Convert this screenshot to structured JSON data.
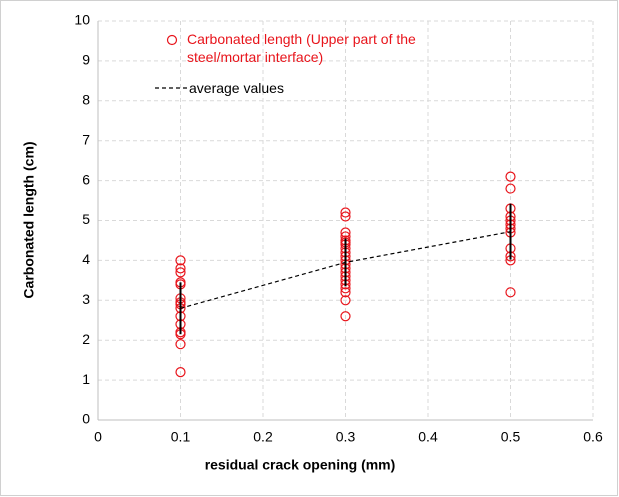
{
  "chart_data": {
    "type": "scatter",
    "xlabel": "residual crack opening (mm)",
    "ylabel": "Carbonated length (cm)",
    "xlim": [
      0,
      0.6
    ],
    "xticks": [
      0,
      0.1,
      0.2,
      0.3,
      0.4,
      0.5,
      0.6
    ],
    "ylim": [
      0,
      10
    ],
    "yticks": [
      0,
      1,
      2,
      3,
      4,
      5,
      6,
      7,
      8,
      9,
      10
    ],
    "grid": true,
    "series": [
      {
        "name": "Carbonated length (Upper part of the steel/mortar interface)",
        "color": "#e8141b",
        "marker": "circle",
        "x": [
          0.1,
          0.1,
          0.1,
          0.1,
          0.1,
          0.1,
          0.1,
          0.1,
          0.1,
          0.1,
          0.1,
          0.1,
          0.1,
          0.1,
          0.1,
          0.3,
          0.3,
          0.3,
          0.3,
          0.3,
          0.3,
          0.3,
          0.3,
          0.3,
          0.3,
          0.3,
          0.3,
          0.3,
          0.3,
          0.3,
          0.3,
          0.3,
          0.3,
          0.3,
          0.3,
          0.3,
          0.5,
          0.5,
          0.5,
          0.5,
          0.5,
          0.5,
          0.5,
          0.5,
          0.5,
          0.5,
          0.5,
          0.5
        ],
        "values": [
          4.0,
          3.8,
          3.7,
          3.45,
          3.4,
          3.05,
          2.95,
          2.9,
          2.8,
          2.6,
          2.4,
          2.2,
          2.15,
          1.9,
          1.2,
          5.2,
          5.1,
          4.7,
          4.6,
          4.5,
          4.45,
          4.4,
          4.3,
          4.2,
          4.1,
          4.0,
          3.9,
          3.8,
          3.7,
          3.6,
          3.5,
          3.4,
          3.3,
          3.2,
          3.0,
          2.6,
          6.1,
          5.8,
          5.3,
          5.1,
          5.0,
          4.9,
          4.8,
          4.7,
          4.3,
          4.1,
          4.0,
          3.2
        ]
      },
      {
        "name": "average values",
        "color": "#000000",
        "marker": "dashed-line",
        "x": [
          0.1,
          0.3,
          0.5
        ],
        "values": [
          2.8,
          3.95,
          4.72
        ],
        "errors": [
          0.65,
          0.6,
          0.7
        ]
      }
    ]
  }
}
